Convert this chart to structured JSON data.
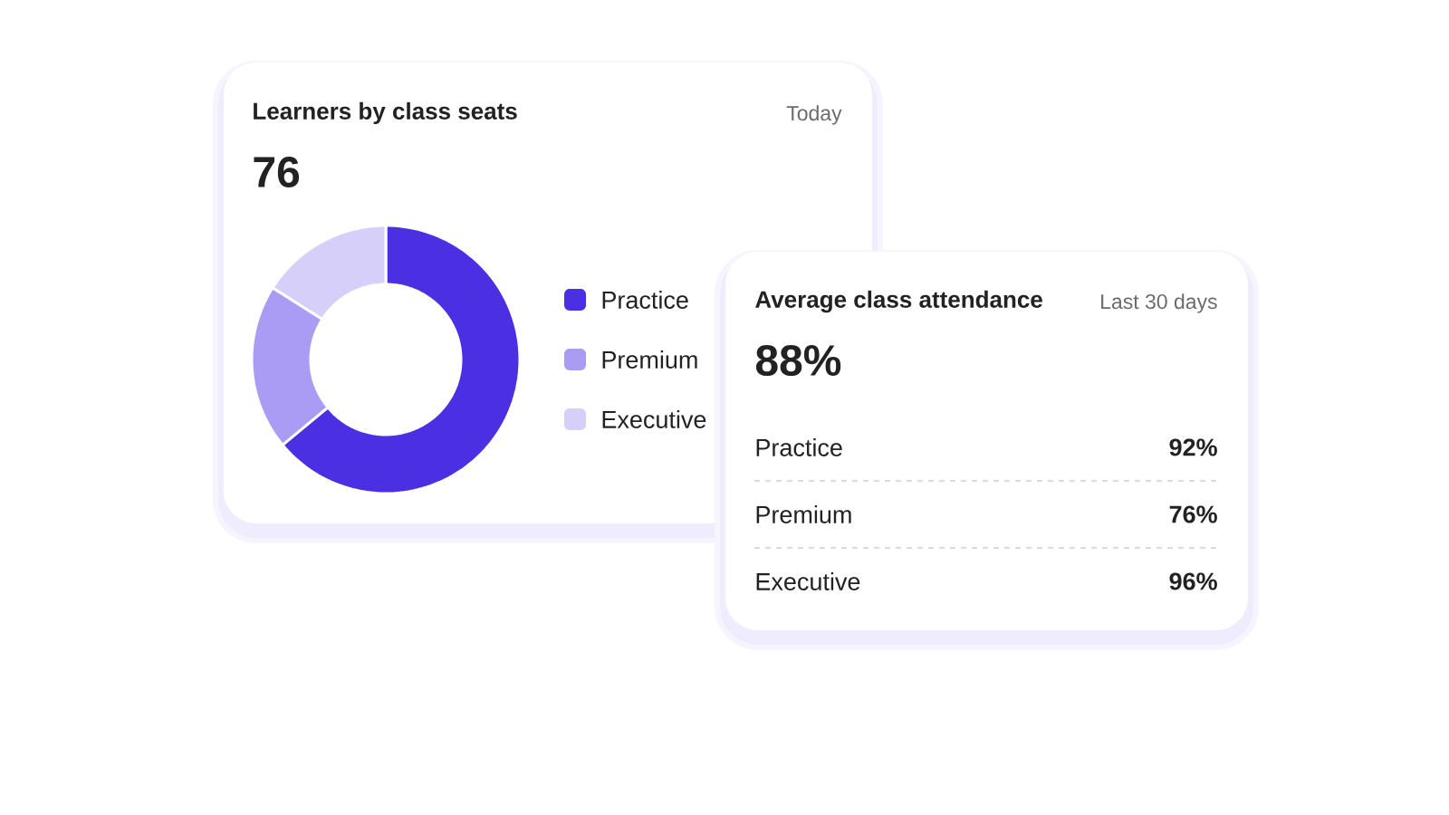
{
  "chart_data": [
    {
      "type": "donut",
      "title": "Learners by class seats",
      "annotations": [
        "Today",
        "76"
      ],
      "categories": [
        "Practice",
        "Premium",
        "Executive"
      ],
      "values": [
        64,
        20,
        16
      ],
      "colors": [
        "#4b30e3",
        "#aa9cf5",
        "#d6cffa"
      ],
      "legend": "right"
    },
    {
      "type": "other",
      "title": "Average class attendance",
      "annotations": [
        "Last 30 days",
        "88%",
        "Practice",
        "92%",
        "Premium",
        "76%",
        "Executive",
        "96%"
      ]
    }
  ]
}
